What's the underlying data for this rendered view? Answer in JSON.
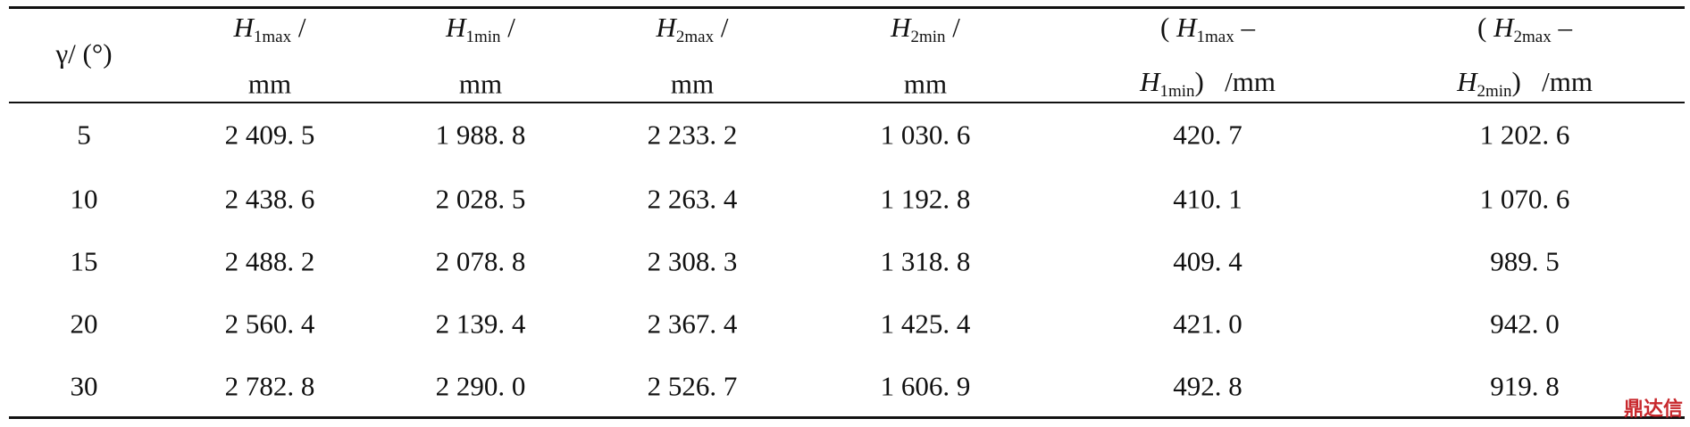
{
  "table": {
    "header": [
      [
        [
          "γ/ (°)"
        ]
      ],
      [
        [
          {
            "italic": "H"
          },
          {
            "sub": "1max"
          },
          " /"
        ],
        [
          "mm"
        ]
      ],
      [
        [
          {
            "italic": "H"
          },
          {
            "sub": "1min"
          },
          " /"
        ],
        [
          "mm"
        ]
      ],
      [
        [
          {
            "italic": "H"
          },
          {
            "sub": "2max"
          },
          " /"
        ],
        [
          "mm"
        ]
      ],
      [
        [
          {
            "italic": "H"
          },
          {
            "sub": "2min"
          },
          " /"
        ],
        [
          "mm"
        ]
      ],
      [
        [
          "( ",
          {
            "italic": "H"
          },
          {
            "sub": "1max"
          },
          " –"
        ],
        [
          {
            "italic": "H"
          },
          {
            "sub": "1min"
          },
          ")   /mm"
        ]
      ],
      [
        [
          "( ",
          {
            "italic": "H"
          },
          {
            "sub": "2max"
          },
          " –"
        ],
        [
          {
            "italic": "H"
          },
          {
            "sub": "2min"
          },
          ")   /mm"
        ]
      ]
    ],
    "rows": [
      [
        "5",
        "2 409. 5",
        "1 988. 8",
        "2 233. 2",
        "1 030. 6",
        "420. 7",
        "1 202. 6"
      ],
      [
        "10",
        "2 438. 6",
        "2 028. 5",
        "2 263. 4",
        "1 192. 8",
        "410. 1",
        "1 070. 6"
      ],
      [
        "15",
        "2 488. 2",
        "2 078. 8",
        "2 308. 3",
        "1 318. 8",
        "409. 4",
        "989. 5"
      ],
      [
        "20",
        "2 560. 4",
        "2 139. 4",
        "2 367. 4",
        "1 425. 4",
        "421. 0",
        "942. 0"
      ],
      [
        "30",
        "2 782. 8",
        "2 290. 0",
        "2 526. 7",
        "1 606. 9",
        "492. 8",
        "919. 8"
      ]
    ],
    "watermark": "鼎达信"
  }
}
